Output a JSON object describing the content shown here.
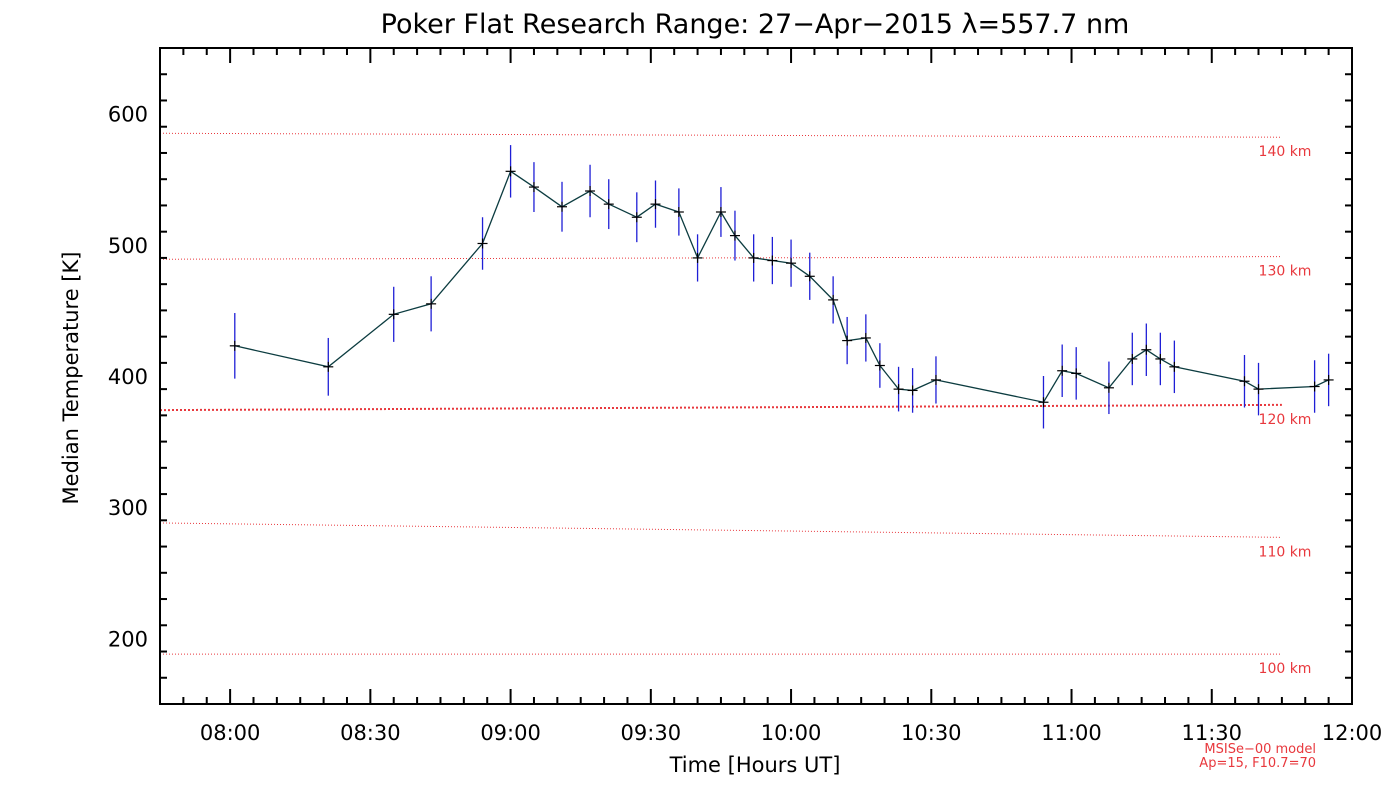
{
  "chart_data": {
    "type": "line",
    "title": "Poker Flat Research Range: 27−Apr−2015 λ=557.7 nm",
    "xlabel": "Time [Hours UT]",
    "ylabel": "Median Temperature [K]",
    "xlim": [
      "07:45",
      "12:00"
    ],
    "ylim": [
      150,
      650
    ],
    "x_ticks": [
      "08:00",
      "08:30",
      "09:00",
      "09:30",
      "10:00",
      "10:30",
      "11:00",
      "11:30",
      "12:00"
    ],
    "y_ticks": [
      200,
      300,
      400,
      500,
      600
    ],
    "series": [
      {
        "color": "#0c3c40",
        "marker": "+",
        "error_bar_color": "#1f1fd6",
        "points": [
          {
            "t": "08:01",
            "y": 423,
            "err": 25
          },
          {
            "t": "08:21",
            "y": 407,
            "err": 22
          },
          {
            "t": "08:35",
            "y": 447,
            "err": 21
          },
          {
            "t": "08:43",
            "y": 455,
            "err": 21
          },
          {
            "t": "08:54",
            "y": 501,
            "err": 20
          },
          {
            "t": "09:00",
            "y": 556,
            "err": 20
          },
          {
            "t": "09:05",
            "y": 544,
            "err": 19
          },
          {
            "t": "09:11",
            "y": 529,
            "err": 19
          },
          {
            "t": "09:17",
            "y": 541,
            "err": 20
          },
          {
            "t": "09:21",
            "y": 531,
            "err": 19
          },
          {
            "t": "09:27",
            "y": 521,
            "err": 19
          },
          {
            "t": "09:31",
            "y": 531,
            "err": 18
          },
          {
            "t": "09:36",
            "y": 525,
            "err": 18
          },
          {
            "t": "09:40",
            "y": 490,
            "err": 18
          },
          {
            "t": "09:45",
            "y": 525,
            "err": 19
          },
          {
            "t": "09:48",
            "y": 507,
            "err": 19
          },
          {
            "t": "09:52",
            "y": 490,
            "err": 18
          },
          {
            "t": "09:56",
            "y": 488,
            "err": 18
          },
          {
            "t": "10:00",
            "y": 486,
            "err": 18
          },
          {
            "t": "10:04",
            "y": 476,
            "err": 18
          },
          {
            "t": "10:09",
            "y": 458,
            "err": 18
          },
          {
            "t": "10:12",
            "y": 427,
            "err": 18
          },
          {
            "t": "10:16",
            "y": 429,
            "err": 18
          },
          {
            "t": "10:19",
            "y": 408,
            "err": 17
          },
          {
            "t": "10:23",
            "y": 390,
            "err": 17
          },
          {
            "t": "10:26",
            "y": 389,
            "err": 17
          },
          {
            "t": "10:31",
            "y": 397,
            "err": 18
          },
          {
            "t": "10:54",
            "y": 380,
            "err": 20
          },
          {
            "t": "10:58",
            "y": 404,
            "err": 20
          },
          {
            "t": "11:01",
            "y": 402,
            "err": 20
          },
          {
            "t": "11:08",
            "y": 391,
            "err": 20
          },
          {
            "t": "11:13",
            "y": 413,
            "err": 20
          },
          {
            "t": "11:16",
            "y": 420,
            "err": 20
          },
          {
            "t": "11:19",
            "y": 413,
            "err": 20
          },
          {
            "t": "11:22",
            "y": 407,
            "err": 20
          },
          {
            "t": "11:37",
            "y": 396,
            "err": 20
          },
          {
            "t": "11:40",
            "y": 390,
            "err": 20
          },
          {
            "t": "11:52",
            "y": 392,
            "err": 20
          },
          {
            "t": "11:55",
            "y": 397,
            "err": 20
          }
        ]
      }
    ],
    "reference_lines": [
      {
        "label": "100 km",
        "y_start": 188,
        "y_end": 188,
        "color": "#e8383d",
        "style": "dotted"
      },
      {
        "label": "110 km",
        "y_start": 288,
        "y_end": 277,
        "color": "#e8383d",
        "style": "dotted"
      },
      {
        "label": "120 km",
        "y_start": 374,
        "y_end": 378,
        "color": "#e8383d",
        "style": "dotted-bold"
      },
      {
        "label": "130 km",
        "y_start": 489,
        "y_end": 491,
        "color": "#e8383d",
        "style": "dotted"
      },
      {
        "label": "140 km",
        "y_start": 585,
        "y_end": 582,
        "color": "#e8383d",
        "style": "dotted"
      }
    ],
    "model_note": [
      "MSISe−00 model",
      "Ap=15, F10.7=70"
    ],
    "grid": false
  }
}
